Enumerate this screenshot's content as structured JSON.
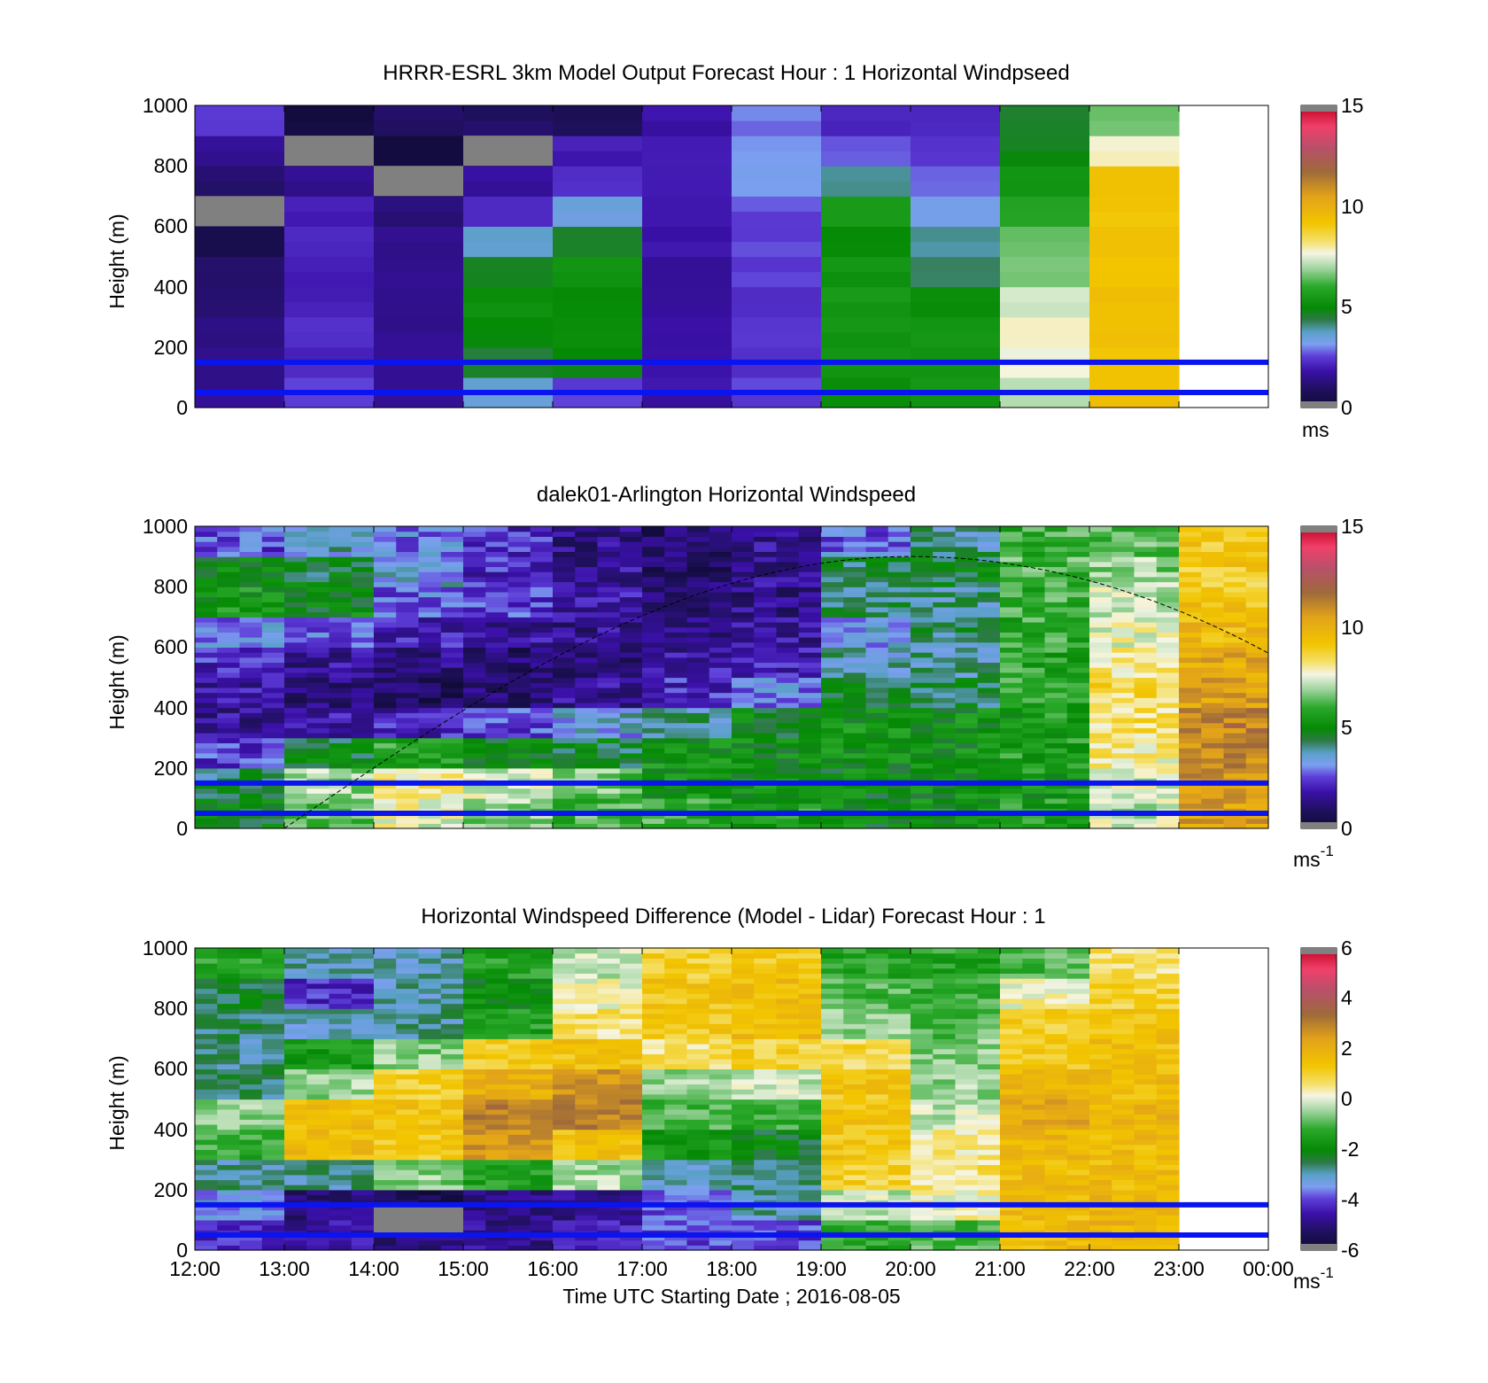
{
  "figure": {
    "xaxis_title": "Time UTC  Starting Date ; 2016-08-05",
    "time_ticks": [
      "12:00",
      "13:00",
      "14:00",
      "15:00",
      "16:00",
      "17:00",
      "18:00",
      "19:00",
      "20:00",
      "21:00",
      "22:00",
      "23:00",
      "00:00"
    ]
  },
  "panels": [
    {
      "title": "HRRR-ESRL 3km Model Output   Forecast Hour : 1 Horizontal Windpseed",
      "ylabel": "Height (m)",
      "yticks": [
        "0",
        "200",
        "400",
        "600",
        "800",
        "1000"
      ],
      "colorbar": {
        "ticks": [
          "0",
          "5",
          "10",
          "15"
        ],
        "unit": "ms"
      }
    },
    {
      "title": "dalek01-Arlington  Horizontal Windspeed",
      "ylabel": "Height (m)",
      "yticks": [
        "0",
        "200",
        "400",
        "600",
        "800",
        "1000"
      ],
      "colorbar": {
        "ticks": [
          "0",
          "5",
          "10",
          "15"
        ],
        "unit": "ms",
        "unit_sup": "-1"
      }
    },
    {
      "title": "Horizontal Windspeed Difference (Model - Lidar) Forecast Hour : 1",
      "ylabel": "Height (m)",
      "yticks": [
        "0",
        "200",
        "400",
        "600",
        "800",
        "1000"
      ],
      "colorbar": {
        "ticks": [
          "-6",
          "-4",
          "-2",
          "0",
          "2",
          "4",
          "6"
        ],
        "unit": "ms",
        "unit_sup": "-1"
      }
    }
  ],
  "chart_data": [
    {
      "type": "heatmap",
      "title": "HRRR-ESRL 3km Model Output   Forecast Hour : 1 Horizontal Windpseed",
      "xlabel": "",
      "ylabel": "Height (m)",
      "xlim": [
        12,
        24
      ],
      "ylim": [
        0,
        1000
      ],
      "clim": [
        0,
        15
      ],
      "colorbar_unit": "ms",
      "x_hours": [
        12,
        13,
        14,
        15,
        16,
        17,
        18,
        19,
        20,
        21,
        22
      ],
      "y_heights_m": [
        50,
        150,
        250,
        350,
        450,
        550,
        650,
        750,
        850,
        950
      ],
      "values_ms": [
        [
          1.5,
          2.5,
          1.5,
          3.5,
          2.5,
          1.8,
          2.5,
          5.2,
          5.3,
          7.2,
          9.3
        ],
        [
          1.4,
          2.1,
          1.5,
          4.6,
          4.8,
          1.8,
          2.4,
          5.3,
          5.4,
          7.6,
          9.2
        ],
        [
          1.3,
          2.2,
          1.5,
          4.9,
          5.0,
          1.8,
          2.4,
          5.3,
          5.3,
          7.7,
          9.3
        ],
        [
          1.2,
          2.0,
          1.4,
          5.1,
          5.1,
          1.7,
          2.4,
          5.4,
          5.0,
          7.4,
          9.3
        ],
        [
          1.1,
          1.9,
          1.4,
          4.8,
          5.2,
          1.6,
          2.5,
          5.3,
          4.2,
          6.6,
          9.2
        ],
        [
          0.6,
          2.1,
          1.4,
          3.6,
          4.6,
          1.8,
          2.6,
          5.0,
          4.0,
          6.4,
          9.3
        ],
        [
          0.8,
          2.0,
          1.3,
          2.2,
          3.5,
          2.0,
          2.6,
          5.4,
          3.3,
          5.8,
          9.2
        ],
        [
          1.0,
          1.5,
          0.6,
          1.7,
          2.4,
          2.1,
          3.2,
          4.0,
          2.7,
          5.4,
          9.4
        ],
        [
          1.6,
          0.6,
          0.3,
          0.6,
          2.0,
          2.0,
          3.2,
          2.8,
          2.3,
          4.8,
          7.8
        ],
        [
          2.4,
          0.3,
          1.0,
          1.0,
          0.8,
          1.8,
          2.9,
          2.1,
          2.2,
          4.6,
          6.6
        ]
      ],
      "gray_no_data_cells_hour_height": [
        [
          12,
          650
        ],
        [
          13,
          850
        ],
        [
          14,
          750
        ],
        [
          15,
          850
        ]
      ],
      "overlay_lines_height_m": [
        150,
        50
      ]
    },
    {
      "type": "heatmap",
      "title": "dalek01-Arlington  Horizontal Windspeed",
      "xlabel": "",
      "ylabel": "Height (m)",
      "xlim": [
        12,
        24
      ],
      "ylim": [
        0,
        1000
      ],
      "clim": [
        0,
        15
      ],
      "colorbar_unit": "ms-1",
      "x_hours": [
        12,
        13,
        14,
        15,
        16,
        17,
        18,
        19,
        20,
        21,
        22,
        23
      ],
      "y_heights_m": [
        50,
        150,
        250,
        350,
        450,
        550,
        650,
        750,
        850,
        950
      ],
      "values_ms": [
        [
          4.8,
          6.5,
          7.6,
          6.8,
          6.2,
          6.0,
          5.6,
          5.0,
          5.2,
          5.6,
          7.2,
          10.4
        ],
        [
          4.4,
          7.0,
          8.0,
          7.4,
          6.5,
          5.4,
          5.2,
          5.0,
          5.0,
          5.4,
          7.4,
          10.8
        ],
        [
          2.4,
          4.6,
          5.8,
          4.8,
          4.6,
          5.3,
          5.1,
          5.2,
          5.2,
          5.6,
          8.0,
          11.0
        ],
        [
          1.6,
          1.8,
          2.0,
          2.6,
          3.4,
          4.0,
          4.8,
          5.3,
          5.2,
          5.5,
          8.3,
          11.2
        ],
        [
          1.8,
          1.2,
          0.8,
          1.1,
          1.6,
          2.2,
          3.0,
          4.6,
          4.4,
          5.8,
          8.5,
          10.4
        ],
        [
          2.2,
          1.6,
          1.4,
          1.0,
          1.2,
          1.8,
          2.0,
          3.8,
          4.0,
          5.8,
          8.2,
          10.2
        ],
        [
          3.0,
          2.8,
          2.0,
          1.7,
          1.5,
          1.4,
          1.6,
          3.4,
          4.2,
          5.9,
          7.6,
          9.6
        ],
        [
          5.4,
          5.0,
          2.8,
          2.4,
          1.8,
          1.3,
          1.4,
          4.2,
          4.0,
          6.0,
          7.2,
          9.2
        ],
        [
          5.0,
          4.6,
          3.4,
          2.2,
          1.6,
          1.0,
          1.5,
          4.4,
          4.6,
          6.2,
          6.8,
          9.0
        ],
        [
          2.6,
          3.6,
          3.0,
          2.2,
          1.4,
          1.0,
          1.6,
          2.8,
          4.0,
          6.0,
          6.4,
          9.1
        ]
      ],
      "overlay_lines_height_m": [
        150,
        50
      ],
      "dashed_curve": {
        "start": [
          13.0,
          0
        ],
        "peak": [
          20.0,
          900
        ],
        "end": [
          24.0,
          580
        ]
      }
    },
    {
      "type": "heatmap",
      "title": "Horizontal Windspeed Difference (Model - Lidar) Forecast Hour : 1",
      "xlabel": "Time UTC  Starting Date ; 2016-08-05",
      "ylabel": "Height (m)",
      "xlim": [
        12,
        24
      ],
      "ylim": [
        0,
        1000
      ],
      "clim": [
        -6,
        6
      ],
      "colorbar_unit": "ms-1",
      "x_hours": [
        12,
        13,
        14,
        15,
        16,
        17,
        18,
        19,
        20,
        21,
        22
      ],
      "y_heights_m": [
        50,
        150,
        250,
        350,
        450,
        550,
        650,
        750,
        850,
        950
      ],
      "values_ms": [
        [
          -4.2,
          -4.6,
          -5.0,
          -4.8,
          -4.4,
          -4.0,
          -4.0,
          -1.4,
          -1.0,
          1.6,
          1.8
        ],
        [
          -3.4,
          -5.0,
          -5.6,
          -5.0,
          -4.8,
          -3.8,
          -3.0,
          -0.2,
          0.2,
          1.6,
          1.8
        ],
        [
          -2.8,
          -2.8,
          -0.6,
          -1.4,
          -0.4,
          -3.0,
          -2.8,
          1.0,
          0.6,
          1.6,
          1.6
        ],
        [
          -1.2,
          1.6,
          1.2,
          2.6,
          1.4,
          -1.6,
          -2.2,
          1.3,
          0.4,
          1.8,
          1.6
        ],
        [
          -0.6,
          1.6,
          1.4,
          3.0,
          3.0,
          -1.0,
          -1.2,
          1.3,
          -0.2,
          2.2,
          1.8
        ],
        [
          -2.6,
          -0.5,
          1.0,
          2.0,
          2.6,
          -0.5,
          -0.2,
          1.3,
          -0.5,
          1.8,
          1.6
        ],
        [
          -2.8,
          -1.6,
          -0.6,
          1.2,
          1.4,
          0.6,
          1.0,
          0.8,
          -0.6,
          1.2,
          1.5
        ],
        [
          -2.6,
          -3.0,
          -2.8,
          -1.4,
          0.6,
          1.2,
          1.6,
          -0.6,
          -1.0,
          1.1,
          1.4
        ],
        [
          -2.4,
          -4.2,
          -3.0,
          -2.0,
          0.2,
          1.3,
          1.6,
          -1.0,
          -1.2,
          0.2,
          1.0
        ],
        [
          -1.4,
          -3.0,
          -3.0,
          -1.4,
          -0.2,
          1.0,
          1.2,
          -1.4,
          -1.4,
          -1.0,
          0.6
        ]
      ],
      "gray_no_data_cells_hour_height": [
        [
          14,
          100
        ]
      ],
      "overlay_lines_height_m": [
        150,
        50
      ]
    }
  ]
}
